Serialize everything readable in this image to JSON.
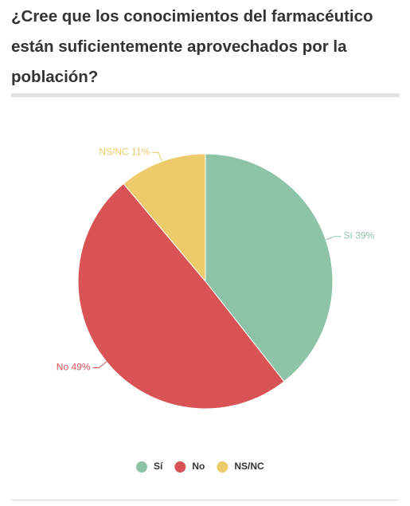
{
  "chart_data": {
    "type": "pie",
    "title": "¿Cree que los conocimientos del farmacéutico están suficientemente aprovechados por la población?",
    "categories": [
      "Sí",
      "No",
      "NS/NC"
    ],
    "values": [
      39,
      49,
      11
    ],
    "value_labels": [
      "39%",
      "49%",
      "11%"
    ],
    "colors": [
      "#8dc3a7",
      "#d95355",
      "#eecb6a"
    ],
    "legend": "bottom"
  }
}
